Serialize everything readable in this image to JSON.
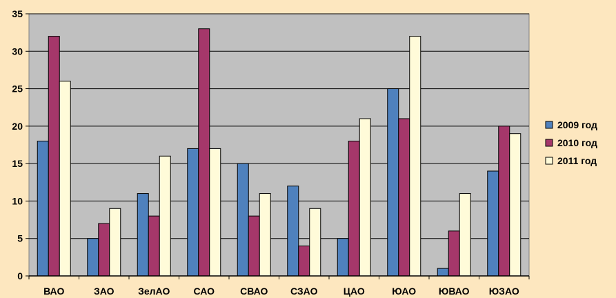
{
  "chart_data": {
    "type": "bar",
    "title": "",
    "xlabel": "",
    "ylabel": "",
    "categories": [
      "ВАО",
      "ЗАО",
      "ЗелАО",
      "САО",
      "СВАО",
      "СЗАО",
      "ЦАО",
      "ЮАО",
      "ЮВАО",
      "ЮЗАО"
    ],
    "series": [
      {
        "name": "2009 год",
        "color": "#4f81bd",
        "values": [
          18,
          5,
          11,
          17,
          15,
          12,
          5,
          25,
          1,
          14
        ]
      },
      {
        "name": "2010 год",
        "color": "#a5376a",
        "values": [
          32,
          7,
          8,
          33,
          8,
          4,
          18,
          21,
          6,
          20
        ]
      },
      {
        "name": "2011 год",
        "color": "#fffbd9",
        "values": [
          26,
          9,
          16,
          17,
          11,
          9,
          21,
          32,
          11,
          19
        ]
      }
    ],
    "ylim": [
      0,
      35
    ],
    "yticks": [
      0,
      5,
      10,
      15,
      20,
      25,
      30,
      35
    ],
    "grid": true,
    "plot_background": "#c0c0c0",
    "page_background": "#fde7bf",
    "legend": "right"
  }
}
